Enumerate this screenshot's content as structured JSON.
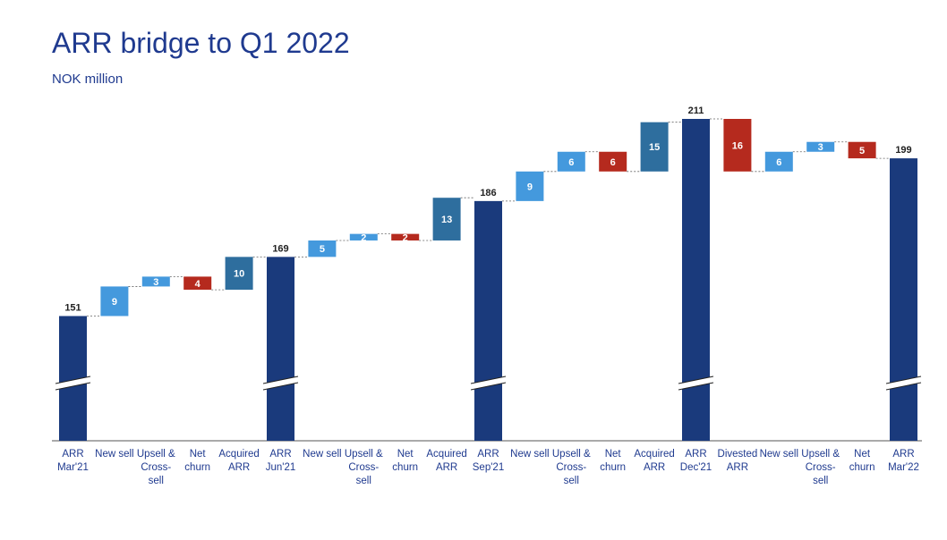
{
  "title": "ARR bridge to Q1 2022",
  "subtitle": "NOK million",
  "colors": {
    "total": "#1a3a7c",
    "increase": "#4499dd",
    "churn": "#b52a1e",
    "acquired": "#2e6e9e",
    "title": "#1f3a8f",
    "label": "#1f3a8f"
  },
  "chart_data": {
    "type": "bar",
    "subtype": "waterfall",
    "axis_break": true,
    "categories": [
      "ARR Mar'21",
      "New sell",
      "Upsell & Cross-sell",
      "Net churn",
      "Acquired ARR",
      "ARR Jun'21",
      "New sell",
      "Upsell & Cross-sell",
      "Net churn",
      "Acquired ARR",
      "ARR Sep'21",
      "New sell",
      "Upsell & Cross-sell",
      "Net churn",
      "Acquired ARR",
      "ARR Dec'21",
      "Divested ARR",
      "New sell",
      "Upsell & Cross-sell",
      "Net churn",
      "ARR Mar'22"
    ],
    "category_lines": [
      [
        "ARR",
        "Mar'21"
      ],
      [
        "New sell"
      ],
      [
        "Upsell &",
        "Cross-",
        "sell"
      ],
      [
        "Net",
        "churn"
      ],
      [
        "Acquired",
        "ARR"
      ],
      [
        "ARR",
        "Jun'21"
      ],
      [
        "New sell"
      ],
      [
        "Upsell &",
        "Cross-",
        "sell"
      ],
      [
        "Net",
        "churn"
      ],
      [
        "Acquired",
        "ARR"
      ],
      [
        "ARR",
        "Sep'21"
      ],
      [
        "New sell"
      ],
      [
        "Upsell &",
        "Cross-",
        "sell"
      ],
      [
        "Net",
        "churn"
      ],
      [
        "Acquired",
        "ARR"
      ],
      [
        "ARR",
        "Dec'21"
      ],
      [
        "Divested",
        "ARR"
      ],
      [
        "New sell"
      ],
      [
        "Upsell &",
        "Cross-",
        "sell"
      ],
      [
        "Net",
        "churn"
      ],
      [
        "ARR",
        "Mar'22"
      ]
    ],
    "bars": [
      {
        "kind": "total",
        "value": 151,
        "label": "151"
      },
      {
        "kind": "increase",
        "value": 9,
        "label": "9"
      },
      {
        "kind": "increase",
        "value": 3,
        "label": "3"
      },
      {
        "kind": "churn",
        "value": -4,
        "label": "4"
      },
      {
        "kind": "acquired",
        "value": 10,
        "label": "10"
      },
      {
        "kind": "total",
        "value": 169,
        "label": "169"
      },
      {
        "kind": "increase",
        "value": 5,
        "label": "5"
      },
      {
        "kind": "increase",
        "value": 2,
        "label": "2"
      },
      {
        "kind": "churn",
        "value": -2,
        "label": "2"
      },
      {
        "kind": "acquired",
        "value": 13,
        "label": "13"
      },
      {
        "kind": "total",
        "value": 186,
        "label": "186"
      },
      {
        "kind": "increase",
        "value": 9,
        "label": "9"
      },
      {
        "kind": "increase",
        "value": 6,
        "label": "6"
      },
      {
        "kind": "churn",
        "value": -6,
        "label": "6"
      },
      {
        "kind": "acquired",
        "value": 15,
        "label": "15"
      },
      {
        "kind": "total",
        "value": 211,
        "label": "211"
      },
      {
        "kind": "churn",
        "value": -16,
        "label": "16"
      },
      {
        "kind": "increase",
        "value": 6,
        "label": "6"
      },
      {
        "kind": "increase",
        "value": 3,
        "label": "3"
      },
      {
        "kind": "churn",
        "value": -5,
        "label": "5"
      },
      {
        "kind": "total",
        "value": 199,
        "label": "199"
      }
    ]
  }
}
